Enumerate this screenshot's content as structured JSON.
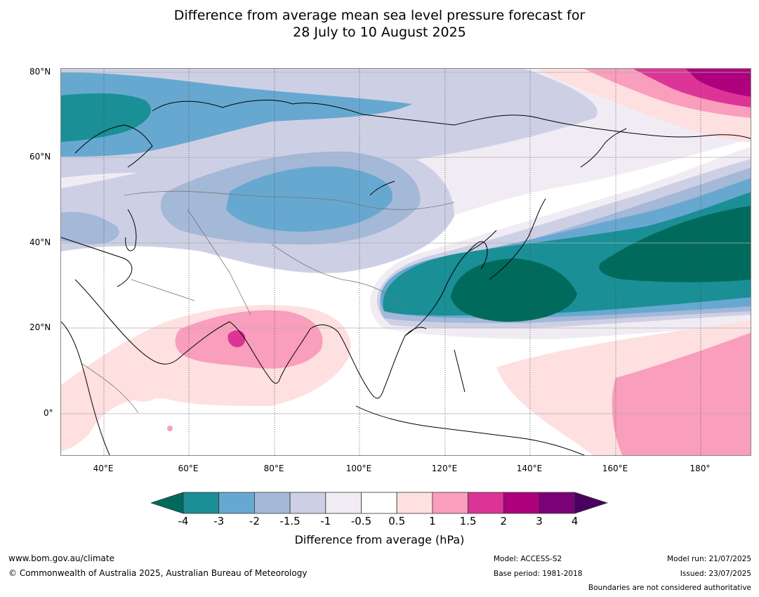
{
  "title": {
    "line1": "Difference from average mean sea level pressure forecast for",
    "line2": "28 July to 10 August 2025"
  },
  "map": {
    "projection": "equirectangular",
    "lon_range_deg_east": [
      30,
      192
    ],
    "lat_range_deg": [
      -10,
      81
    ],
    "lat_labels": [
      "80°N",
      "60°N",
      "40°N",
      "20°N",
      "0°"
    ],
    "lon_labels": [
      "40°E",
      "60°E",
      "80°E",
      "100°E",
      "120°E",
      "140°E",
      "160°E",
      "180°"
    ],
    "anomaly_features": [
      {
        "region": "Arctic / Barents Sea",
        "level_hPa": "-3 to -4"
      },
      {
        "region": "Central Asia / Mongolia",
        "level_hPa": "-1.5 to -2"
      },
      {
        "region": "Japan and NW Pacific",
        "level_hPa": "below -4"
      },
      {
        "region": "India",
        "level_hPa": "1 to 2"
      },
      {
        "region": "Bering Sea",
        "level_hPa": "2 to 4"
      },
      {
        "region": "Central tropical Pacific",
        "level_hPa": "1 to 1.5"
      }
    ]
  },
  "colorbar": {
    "title": "Difference from average (hPa)",
    "ticks": [
      "-4",
      "-3",
      "-2",
      "-1.5",
      "-1",
      "-0.5",
      "0.5",
      "1",
      "1.5",
      "2",
      "3",
      "4"
    ],
    "colors": [
      "#006b5c",
      "#1a8f96",
      "#67a8d0",
      "#a4b8d8",
      "#cdd0e5",
      "#f1ecf4",
      "#ffffff",
      "#fde0df",
      "#f99ebc",
      "#dd3497",
      "#ae017e",
      "#7a0177",
      "#4a0060"
    ]
  },
  "footer": {
    "website": "www.bom.gov.au/climate",
    "copyright": "© Commonwealth of Australia 2025, Australian Bureau of Meteorology",
    "model": "Model: ACCESS-S2",
    "base_period": "Base period: 1981-2018",
    "model_run": "Model run: 21/07/2025",
    "issued": "Issued: 23/07/2025",
    "disclaimer": "Boundaries are not considered authoritative"
  }
}
